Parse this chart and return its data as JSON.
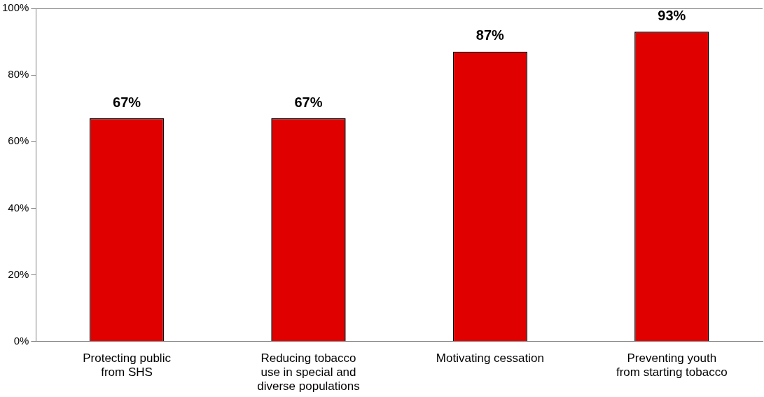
{
  "chart_data": {
    "type": "bar",
    "categories": [
      "Protecting public from SHS",
      "Reducing tobacco use in special and diverse populations",
      "Motivating cessation",
      "Preventing youth from starting tobacco"
    ],
    "values": [
      67,
      67,
      87,
      93
    ],
    "color": "#e00000",
    "ylim": [
      0,
      100
    ],
    "yticks": [
      {
        "value": 0,
        "label": "0%"
      },
      {
        "value": 20,
        "label": "20%"
      },
      {
        "value": 40,
        "label": "40%"
      },
      {
        "value": 60,
        "label": "60%"
      },
      {
        "value": 80,
        "label": "80%"
      },
      {
        "value": 100,
        "label": "100%"
      }
    ],
    "value_labels": [
      "67%",
      "67%",
      "87%",
      "93%"
    ],
    "grid": false,
    "legend": false
  }
}
